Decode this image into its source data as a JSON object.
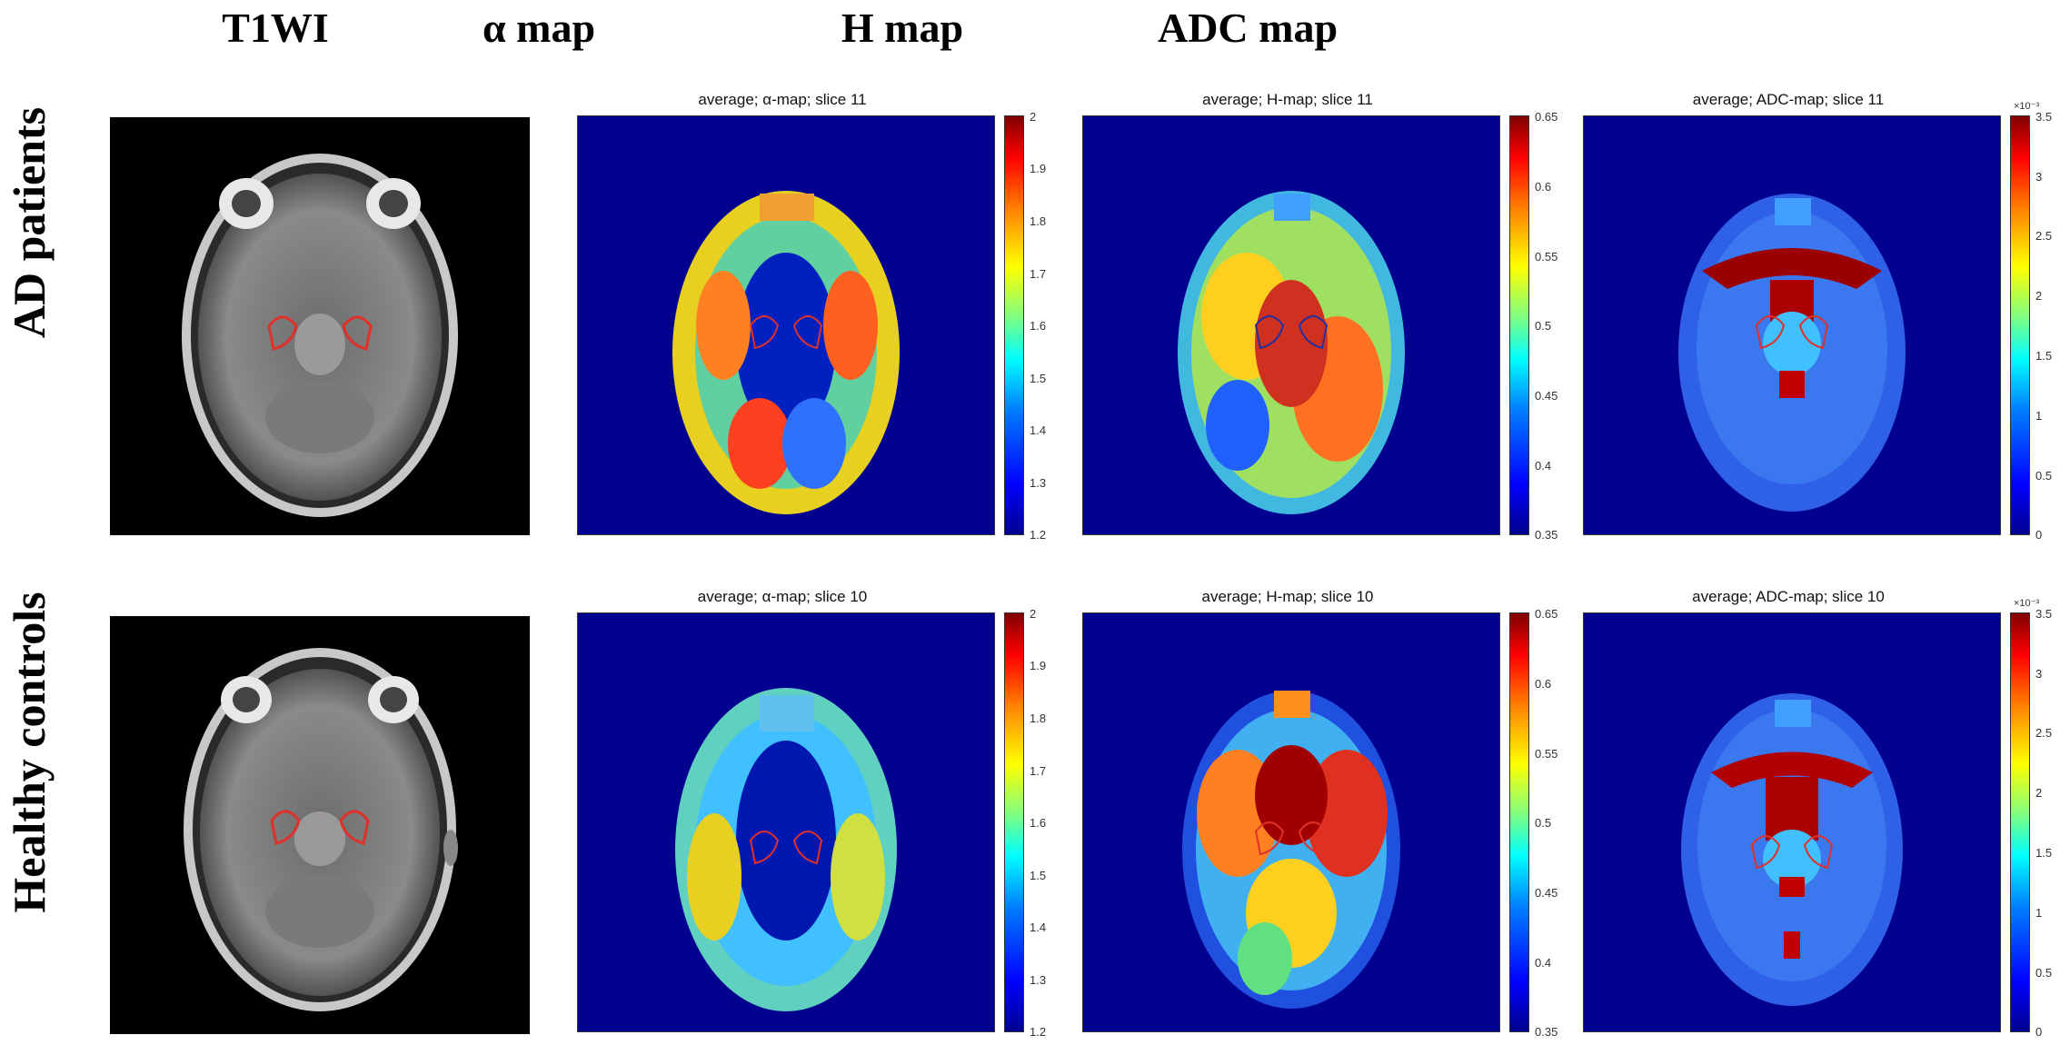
{
  "columns": [
    {
      "key": "t1",
      "label": "T1WI"
    },
    {
      "key": "alpha",
      "label": "α map"
    },
    {
      "key": "h",
      "label": "H map"
    },
    {
      "key": "adc",
      "label": "ADC map"
    }
  ],
  "rows": [
    {
      "key": "ad",
      "label": "AD patients"
    },
    {
      "key": "hc",
      "label": "Healthy controls"
    }
  ],
  "panels": {
    "ad_alpha": {
      "title": "average; α-map; slice 11"
    },
    "ad_h": {
      "title": "average; H-map; slice 11"
    },
    "ad_adc": {
      "title": "average; ADC-map; slice 11"
    },
    "hc_alpha": {
      "title": "average; α-map; slice 10"
    },
    "hc_h": {
      "title": "average; H-map; slice 10"
    },
    "hc_adc": {
      "title": "average; ADC-map; slice 10"
    }
  },
  "colorbars": {
    "alpha": {
      "ticks": [
        "2",
        "1.9",
        "1.8",
        "1.7",
        "1.6",
        "1.5",
        "1.4",
        "1.3",
        "1.2"
      ],
      "exponent": ""
    },
    "h": {
      "ticks": [
        "0.65",
        "0.6",
        "0.55",
        "0.5",
        "0.45",
        "0.4",
        "0.35"
      ],
      "exponent": ""
    },
    "adc": {
      "ticks": [
        "3.5",
        "3",
        "2.5",
        "2",
        "1.5",
        "1",
        "0.5",
        "0"
      ],
      "exponent": "×10⁻³"
    }
  },
  "colors": {
    "background_blue": "#02008e",
    "roi_outline": "#e0302a"
  }
}
